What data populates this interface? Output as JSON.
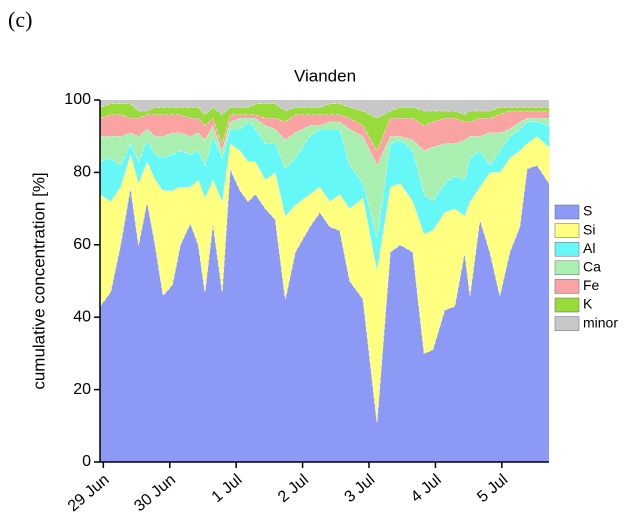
{
  "panel_label": "(c)",
  "chart_data": {
    "type": "stacked_area",
    "title": "Vianden",
    "y_label": "cumulative concentration [%]",
    "x": [
      -0.05,
      0.11,
      0.26,
      0.41,
      0.53,
      0.66,
      0.78,
      0.9,
      1.04,
      1.16,
      1.31,
      1.43,
      1.53,
      1.65,
      1.79,
      1.91,
      2.06,
      2.18,
      2.29,
      2.44,
      2.59,
      2.74,
      2.89,
      3.11,
      3.26,
      3.41,
      3.56,
      3.71,
      3.91,
      4.12,
      4.32,
      4.47,
      4.66,
      4.83,
      4.96,
      5.14,
      5.29,
      5.44,
      5.52,
      5.67,
      5.82,
      5.97,
      6.12,
      6.27,
      6.38,
      6.53,
      6.71
    ],
    "xlim": [
      -0.05,
      6.71
    ],
    "xticks": [
      {
        "value": 0,
        "label": "29 Jun"
      },
      {
        "value": 1,
        "label": "30 Jun"
      },
      {
        "value": 2,
        "label": "1 Jul"
      },
      {
        "value": 3,
        "label": "2 Jul"
      },
      {
        "value": 4,
        "label": "3 Jul"
      },
      {
        "value": 5,
        "label": "4 Jul"
      },
      {
        "value": 6,
        "label": "5 Jul"
      }
    ],
    "ylim": [
      0,
      100
    ],
    "yticks": [
      0,
      20,
      40,
      60,
      80,
      100
    ],
    "series": [
      {
        "name": "S",
        "color": "#8c9af5",
        "values": [
          43,
          47,
          60,
          76,
          60,
          72,
          60,
          46,
          49,
          60,
          66,
          60,
          47,
          66,
          47,
          81,
          75,
          72,
          74,
          70,
          67,
          45,
          58,
          65,
          69,
          65,
          64,
          50,
          45,
          11,
          58,
          60,
          58,
          30,
          31,
          42,
          43,
          58,
          46,
          67,
          58,
          46,
          58,
          65,
          81,
          82,
          77
        ]
      },
      {
        "name": "Si",
        "color": "#ffff80",
        "values": [
          31,
          25,
          16,
          9,
          17,
          11,
          18,
          29,
          26,
          16,
          10,
          18,
          26,
          12,
          25,
          7,
          11,
          11,
          9,
          8,
          13,
          23,
          13,
          9,
          7,
          7,
          10,
          20,
          28,
          42,
          18,
          17,
          14,
          33,
          33,
          27,
          27,
          10,
          26,
          9,
          22,
          34,
          26,
          21,
          7,
          8,
          10
        ]
      },
      {
        "name": "Al",
        "color": "#66f7f7",
        "values": [
          9,
          12,
          6,
          3,
          6,
          6,
          7,
          9,
          10,
          10,
          9,
          8,
          9,
          12,
          12,
          4,
          6,
          11,
          9,
          10,
          8,
          13,
          13,
          16,
          16,
          20,
          18,
          12,
          4,
          9,
          12,
          12,
          14,
          11,
          8,
          8,
          9,
          10,
          12,
          10,
          2,
          6,
          6,
          6,
          6,
          4,
          6
        ]
      },
      {
        "name": "Ca",
        "color": "#a9f0b0",
        "values": [
          7,
          6,
          8,
          3,
          7,
          3,
          5,
          6,
          6,
          5,
          5,
          5,
          7,
          3,
          2,
          2,
          3,
          1,
          3,
          5,
          4,
          8,
          7,
          3,
          1,
          2,
          2,
          10,
          13,
          20,
          2,
          1,
          3,
          12,
          15,
          11,
          9,
          11,
          6,
          4,
          9,
          5,
          2,
          2,
          1,
          1,
          2
        ]
      },
      {
        "name": "Fe",
        "color": "#f9a3a3",
        "values": [
          5,
          6,
          6,
          4,
          5,
          4,
          6,
          6,
          5,
          5,
          5,
          4,
          4,
          2,
          2,
          2,
          1,
          1,
          1,
          2,
          3,
          5,
          5,
          3,
          3,
          2,
          2,
          3,
          3,
          4,
          5,
          5,
          6,
          7,
          7,
          7,
          7,
          5,
          4,
          5,
          4,
          5,
          5,
          3,
          2,
          2,
          2
        ]
      },
      {
        "name": "K",
        "color": "#99db3a",
        "values": [
          3,
          3,
          3,
          4,
          2,
          1,
          2,
          2,
          2,
          2,
          3,
          3,
          3,
          3,
          8,
          2,
          2,
          2,
          3,
          4,
          4,
          3,
          2,
          2,
          2,
          3,
          3,
          3,
          4,
          9,
          2,
          3,
          3,
          4,
          3,
          2,
          2,
          2,
          3,
          2,
          2,
          2,
          1,
          1,
          1,
          1,
          1
        ]
      },
      {
        "name": "minor",
        "color": "#c8c8c8",
        "values": [
          2,
          1,
          1,
          1,
          3,
          3,
          2,
          2,
          2,
          2,
          2,
          2,
          4,
          2,
          4,
          2,
          2,
          2,
          1,
          1,
          1,
          3,
          2,
          2,
          2,
          1,
          1,
          2,
          3,
          5,
          3,
          2,
          2,
          3,
          3,
          3,
          3,
          4,
          3,
          3,
          3,
          2,
          2,
          2,
          2,
          2,
          2
        ]
      }
    ]
  }
}
